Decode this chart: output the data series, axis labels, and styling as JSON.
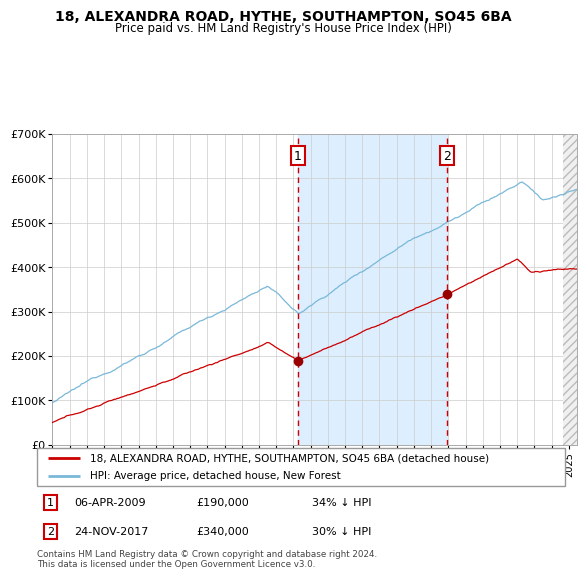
{
  "title": "18, ALEXANDRA ROAD, HYTHE, SOUTHAMPTON, SO45 6BA",
  "subtitle": "Price paid vs. HM Land Registry's House Price Index (HPI)",
  "legend_line1": "18, ALEXANDRA ROAD, HYTHE, SOUTHAMPTON, SO45 6BA (detached house)",
  "legend_line2": "HPI: Average price, detached house, New Forest",
  "annotation1_label": "1",
  "annotation1_date": "06-APR-2009",
  "annotation1_price": "£190,000",
  "annotation1_hpi": "34% ↓ HPI",
  "annotation2_label": "2",
  "annotation2_date": "24-NOV-2017",
  "annotation2_price": "£340,000",
  "annotation2_hpi": "30% ↓ HPI",
  "footer": "Contains HM Land Registry data © Crown copyright and database right 2024.\nThis data is licensed under the Open Government Licence v3.0.",
  "hpi_color": "#7ab8d9",
  "price_color": "#cc0000",
  "marker_color": "#990000",
  "vline_color": "#cc0000",
  "shade_color": "#ddeeff",
  "grid_color": "#cccccc",
  "bg_color": "#ffffff",
  "annotation_box_color": "#cc0000",
  "ylim": [
    0,
    700000
  ],
  "xlim_start": 1995,
  "xlim_end": 2025.5,
  "sale1_year": 2009.27,
  "sale2_year": 2017.9,
  "sale1_price": 190000,
  "sale2_price": 340000,
  "yticks": [
    0,
    100000,
    200000,
    300000,
    400000,
    500000,
    600000,
    700000
  ],
  "ylabels": [
    "£0",
    "£100K",
    "£200K",
    "£300K",
    "£400K",
    "£500K",
    "£600K",
    "£700K"
  ]
}
